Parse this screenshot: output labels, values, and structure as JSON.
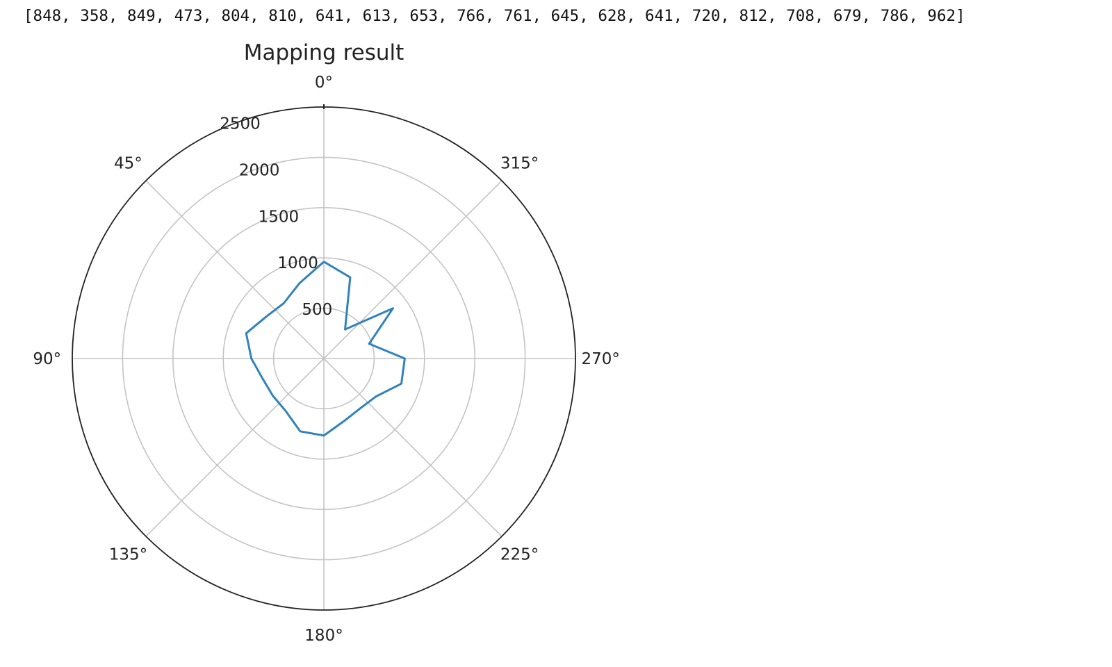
{
  "console_output": "[848, 358, 849, 473, 804, 810, 641, 613, 653, 766, 761, 645, 628, 641, 720, 812, 708, 679, 786, 962]",
  "chart_data": {
    "type": "polar-line",
    "title": "Mapping result",
    "theta_zero_location": "N",
    "theta_direction": "counterclockwise",
    "theta_ticks": [
      "0°",
      "45°",
      "90°",
      "135°",
      "180°",
      "225°",
      "270°",
      "315°"
    ],
    "r_ticks": [
      {
        "value": 500,
        "label": "500"
      },
      {
        "value": 1000,
        "label": "1000"
      },
      {
        "value": 1500,
        "label": "1500"
      },
      {
        "value": 2000,
        "label": "2000"
      },
      {
        "value": 2500,
        "label": "2500"
      }
    ],
    "rlim": [
      0,
      2500
    ],
    "grid": true,
    "series": [
      {
        "color": "#3182bd",
        "theta_deg": [
          0,
          18,
          36,
          54,
          72,
          90,
          108,
          126,
          144,
          162,
          180,
          198,
          216,
          234,
          252,
          270,
          288,
          306,
          324,
          342
        ],
        "r": [
          962,
          786,
          679,
          708,
          812,
          720,
          641,
          628,
          645,
          761,
          766,
          653,
          613,
          641,
          810,
          804,
          473,
          849,
          358,
          848
        ]
      }
    ]
  }
}
